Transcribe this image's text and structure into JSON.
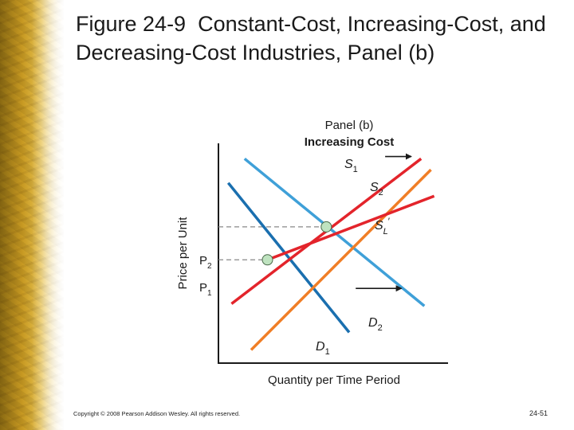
{
  "slide": {
    "title_fig": "Figure 24-9",
    "title_text": "Constant-Cost, Increasing-Cost, and Decreasing-Cost Industries, Panel (b)",
    "footer_copyright": "Copyright © 2008 Pearson Addison Wesley. All rights reserved.",
    "footer_page": "24-51"
  },
  "chart_data": {
    "type": "line",
    "panel_label": "Panel (b)",
    "panel_title": "Increasing Cost",
    "xlabel": "Quantity per Time Period",
    "ylabel": "Price per Unit",
    "y_ticks": [
      {
        "label": "P",
        "sub": "2",
        "level": "P2"
      },
      {
        "label": "P",
        "sub": "1",
        "level": "P1"
      }
    ],
    "series": [
      {
        "name": "D1",
        "label": "D",
        "sub": "1",
        "color": "#1a6faf",
        "from": [
          0.03,
          0.82
        ],
        "to": [
          0.4,
          0.14
        ]
      },
      {
        "name": "D2",
        "label": "D",
        "sub": "2",
        "color": "#3fa0d8",
        "from": [
          0.08,
          0.93
        ],
        "to": [
          0.63,
          0.26
        ]
      },
      {
        "name": "S1",
        "label": "S",
        "sub": "1",
        "color": "#e3242b",
        "from": [
          0.04,
          0.27
        ],
        "to": [
          0.62,
          0.93
        ]
      },
      {
        "name": "S2",
        "label": "S",
        "sub": "2",
        "color": "#f07e26",
        "from": [
          0.1,
          0.06
        ],
        "to": [
          0.65,
          0.88
        ]
      },
      {
        "name": "SL'",
        "label": "S",
        "sub": "L",
        "sup": "′",
        "color": "#e3242b",
        "from": [
          0.15,
          0.47
        ],
        "to": [
          0.66,
          0.76
        ]
      }
    ],
    "equilibria": [
      {
        "name": "E1",
        "at": [
          0.15,
          0.47
        ],
        "level": "P1"
      },
      {
        "name": "E2",
        "at": [
          0.33,
          0.62
        ],
        "level": "P2"
      }
    ],
    "shift_arrows": [
      {
        "from": [
          0.51,
          0.94
        ],
        "to": [
          0.59,
          0.94
        ],
        "meaning": "supply shift"
      },
      {
        "from": [
          0.42,
          0.34
        ],
        "to": [
          0.56,
          0.34
        ],
        "meaning": "demand shift"
      }
    ],
    "colors": {
      "arrow": "#1a1a1a",
      "equilibrium_dot": "#bfe3c0",
      "dashed": "#888888",
      "axis": "#1a1a1a"
    }
  }
}
